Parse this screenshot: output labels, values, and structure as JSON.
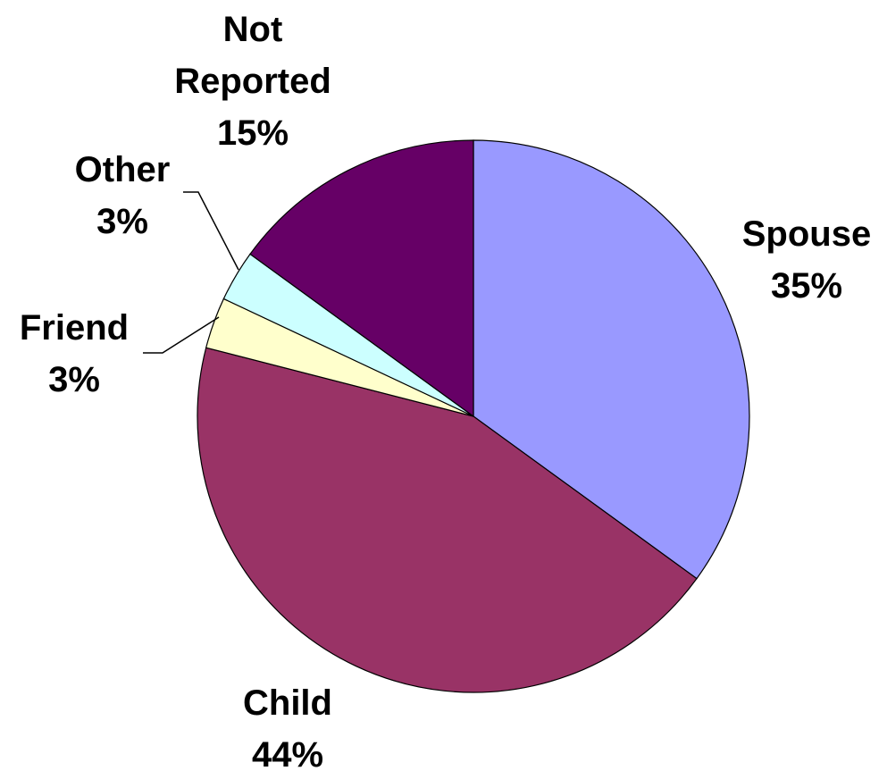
{
  "chart_data": {
    "type": "pie",
    "categories": [
      "Spouse",
      "Child",
      "Friend",
      "Other",
      "Not Reported"
    ],
    "values": [
      35,
      44,
      3,
      3,
      15
    ],
    "value_labels": [
      "35%",
      "44%",
      "3%",
      "3%",
      "15%"
    ],
    "colors": [
      "#9999ff",
      "#993366",
      "#ffffcc",
      "#ccffff",
      "#660066"
    ]
  }
}
